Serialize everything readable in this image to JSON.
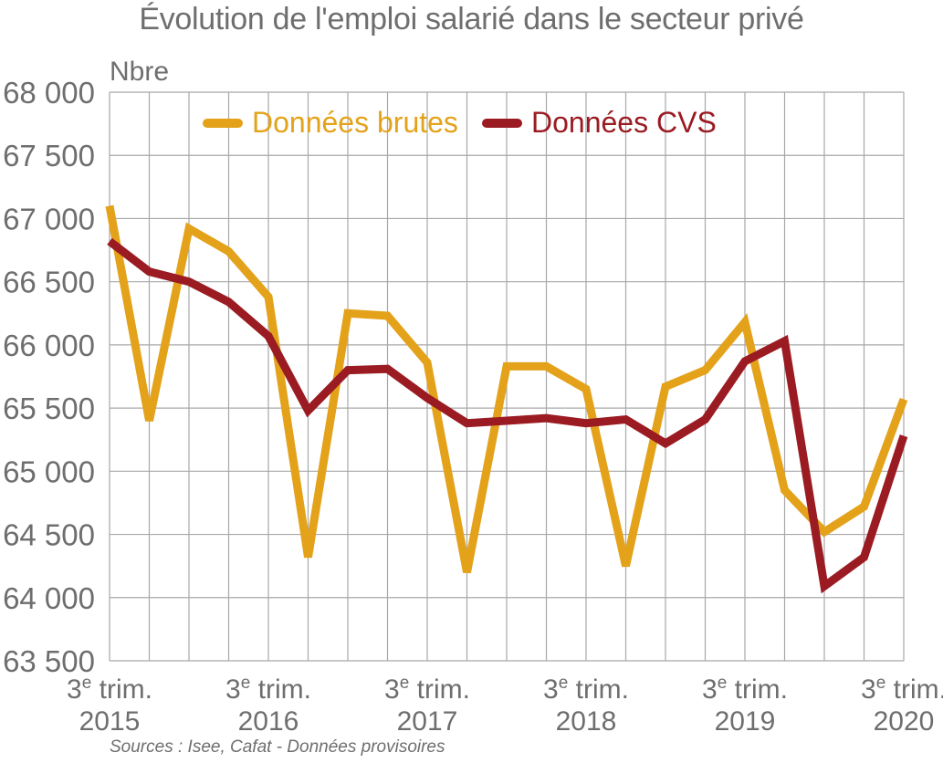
{
  "chart_data": {
    "type": "line",
    "title": "Évolution de l'emploi salarié dans le secteur privé",
    "ylabel": "Nbre",
    "ylim": [
      63500,
      68000
    ],
    "yticks": [
      68000,
      67500,
      67000,
      66500,
      66000,
      65500,
      65000,
      64500,
      64000,
      63500
    ],
    "ytick_labels": [
      "68 000",
      "67 500",
      "67 000",
      "66 500",
      "66 000",
      "65 500",
      "65 000",
      "64 500",
      "64 000",
      "63 500"
    ],
    "x_label_ticks": [
      {
        "index": 0,
        "line1": "3",
        "sup": "e",
        "line1_rest": " trim.",
        "line2": "2015"
      },
      {
        "index": 4,
        "line1": "3",
        "sup": "e",
        "line1_rest": " trim.",
        "line2": "2016"
      },
      {
        "index": 8,
        "line1": "3",
        "sup": "e",
        "line1_rest": " trim.",
        "line2": "2017"
      },
      {
        "index": 12,
        "line1": "3",
        "sup": "e",
        "line1_rest": " trim.",
        "line2": "2018"
      },
      {
        "index": 16,
        "line1": "3",
        "sup": "e",
        "line1_rest": " trim.",
        "line2": "2019"
      },
      {
        "index": 20,
        "line1": "3",
        "sup": "e",
        "line1_rest": " trim.",
        "line2": "2020"
      }
    ],
    "n_points": 21,
    "series": [
      {
        "name": "Données brutes",
        "color": "#e3a21a",
        "values": [
          67100,
          65400,
          66920,
          66740,
          66380,
          64320,
          66250,
          66230,
          65860,
          64200,
          65830,
          65830,
          65650,
          64250,
          65670,
          65800,
          66180,
          64850,
          64520,
          64720,
          65570
        ]
      },
      {
        "name": "Données CVS",
        "color": "#9b1b22",
        "values": [
          66820,
          66580,
          66500,
          66340,
          66070,
          65480,
          65800,
          65810,
          65580,
          65380,
          65400,
          65420,
          65380,
          65410,
          65220,
          65410,
          65870,
          66030,
          64090,
          64320,
          65280
        ]
      }
    ]
  },
  "legend": {
    "brut_label": "Données brutes",
    "cvs_label": "Données CVS"
  },
  "footer": {
    "source": "Sources : Isee, Cafat - Données provisoires"
  }
}
